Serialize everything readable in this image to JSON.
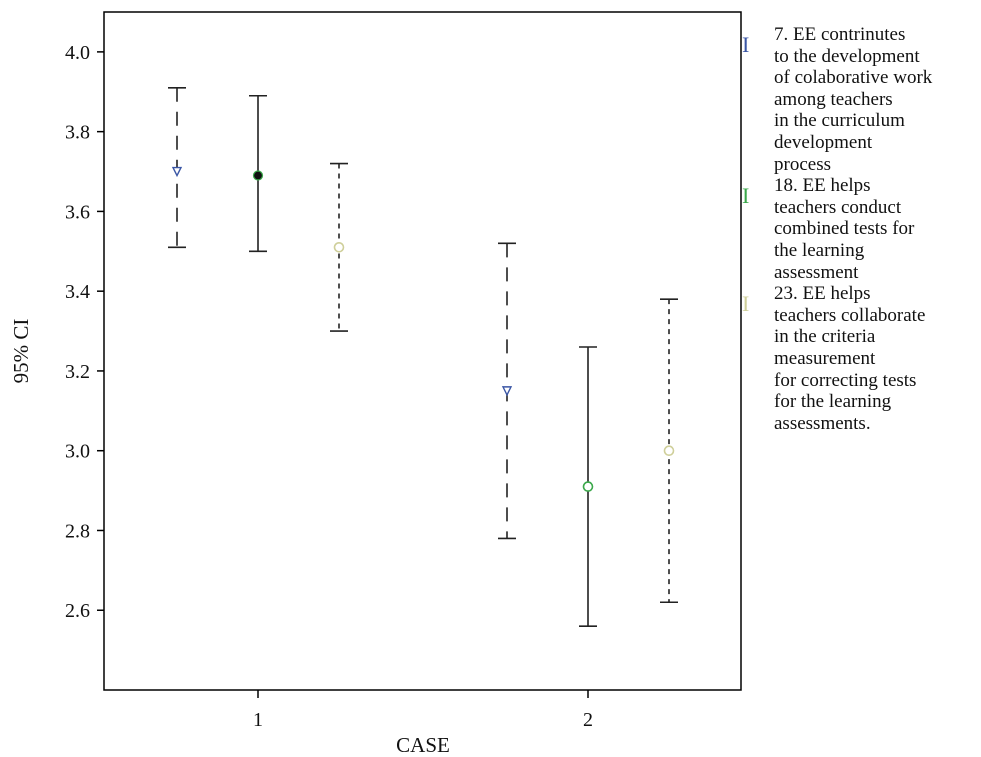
{
  "chart_data": {
    "type": "error_bar",
    "xlabel": "CASE",
    "ylabel": "95% CI",
    "ylim": [
      2.4,
      4.1
    ],
    "yticks": [
      "2.6",
      "2.8",
      "3.0",
      "3.2",
      "3.4",
      "3.6",
      "3.8",
      "4.0"
    ],
    "categories": [
      "1",
      "2"
    ],
    "grid": false,
    "legend_position": "right",
    "series": [
      {
        "name": "7. EE contrinutes\nto the development\nof colaborative work\namong teachers\nin the curriculum\ndevelopment\nprocess",
        "color": "#3a56a5",
        "marker": "triangle-down",
        "line_style": "long-dash",
        "values": [
          {
            "category": "1",
            "mean": 3.7,
            "lower": 3.51,
            "upper": 3.91
          },
          {
            "category": "2",
            "mean": 3.15,
            "lower": 2.78,
            "upper": 3.52
          }
        ]
      },
      {
        "name": " 18. EE helps\nteachers conduct\ncombined tests for\nthe learning\nassessment",
        "color": "#3aa84a",
        "marker": "circle",
        "line_style": "solid",
        "values": [
          {
            "category": "1",
            "mean": 3.69,
            "lower": 3.5,
            "upper": 3.89
          },
          {
            "category": "2",
            "mean": 2.91,
            "lower": 2.56,
            "upper": 3.26
          }
        ]
      },
      {
        "name": " 23. EE helps\nteachers collaborate\nin the criteria\nmeasurement\nfor correcting tests\nfor the learning\nassessments.",
        "color": "#cfcf9a",
        "marker": "circle",
        "line_style": "short-dash",
        "values": [
          {
            "category": "1",
            "mean": 3.51,
            "lower": 3.3,
            "upper": 3.72
          },
          {
            "category": "2",
            "mean": 3.0,
            "lower": 2.62,
            "upper": 3.38
          }
        ]
      }
    ]
  },
  "legend": {
    "marker_glyph": "I"
  }
}
